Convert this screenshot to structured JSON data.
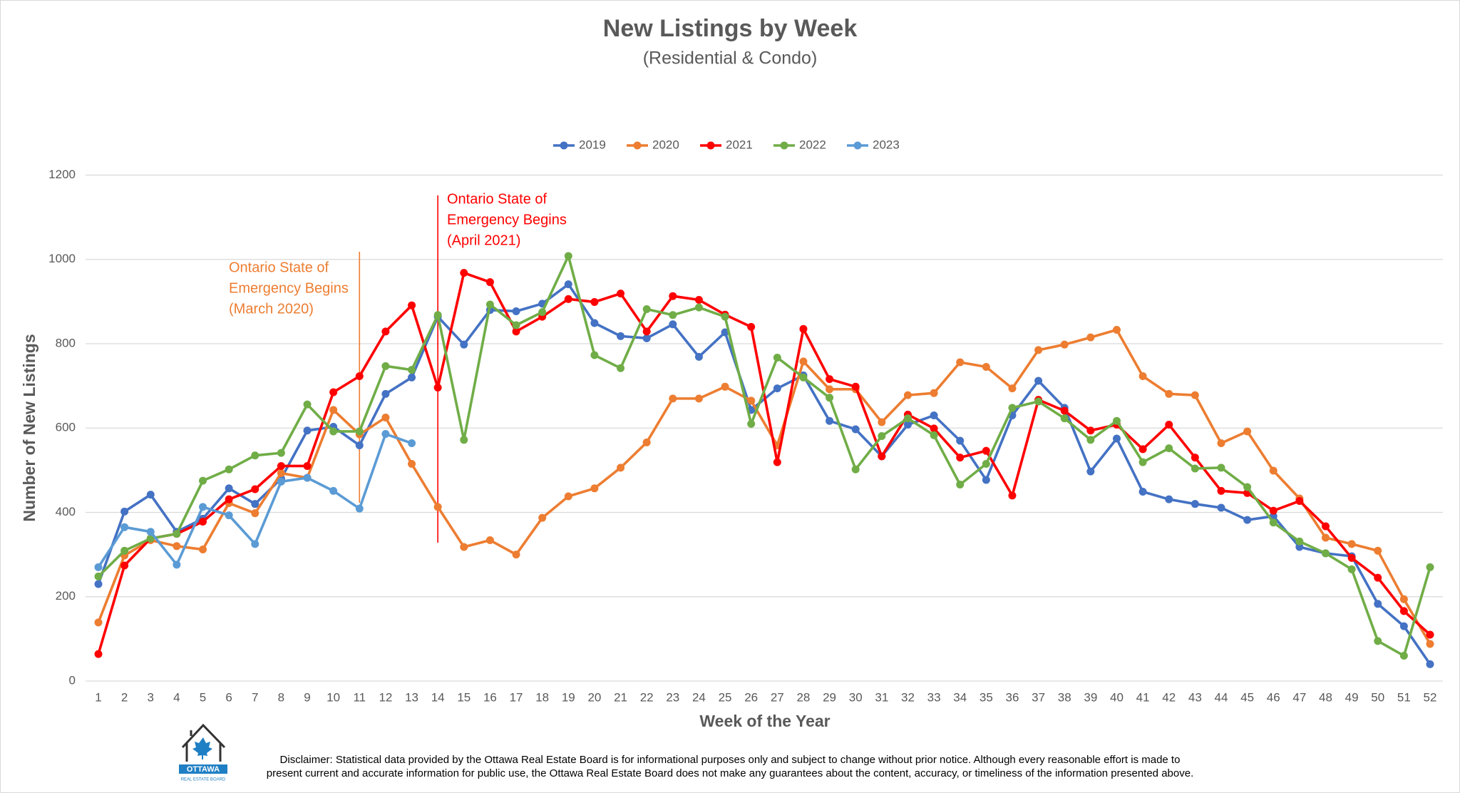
{
  "chart_data": {
    "type": "line",
    "title": "New Listings by Week",
    "subtitle": "(Residential & Condo)",
    "x_label": "Week of the Year",
    "y_label": "Number of New Listings",
    "categories": [
      "1",
      "2",
      "3",
      "4",
      "5",
      "6",
      "7",
      "8",
      "9",
      "10",
      "11",
      "12",
      "13",
      "14",
      "15",
      "16",
      "17",
      "18",
      "19",
      "20",
      "21",
      "22",
      "23",
      "24",
      "25",
      "26",
      "27",
      "28",
      "29",
      "30",
      "31",
      "32",
      "33",
      "34",
      "35",
      "36",
      "37",
      "38",
      "39",
      "40",
      "41",
      "42",
      "43",
      "44",
      "45",
      "46",
      "47",
      "48",
      "49",
      "50",
      "51",
      "52"
    ],
    "ylim": [
      0,
      1200
    ],
    "yticks": [
      0,
      200,
      400,
      600,
      800,
      1000,
      1200
    ],
    "grid": true,
    "legend": "top",
    "series": [
      {
        "name": "2019",
        "color": "#4472c4",
        "values": [
          230,
          402,
          442,
          354,
          385,
          457,
          420,
          480,
          594,
          603,
          559,
          681,
          720,
          864,
          798,
          880,
          877,
          895,
          941,
          849,
          818,
          813,
          846,
          769,
          827,
          643,
          694,
          725,
          617,
          597,
          533,
          608,
          630,
          570,
          477,
          630,
          712,
          648,
          497,
          575,
          449,
          431,
          420,
          411,
          382,
          391,
          318,
          303,
          296,
          183,
          130,
          40
        ]
      },
      {
        "name": "2020",
        "color": "#ed7d31",
        "values": [
          139,
          298,
          334,
          320,
          312,
          422,
          398,
          493,
          482,
          643,
          585,
          625,
          515,
          413,
          318,
          334,
          300,
          387,
          438,
          457,
          506,
          566,
          670,
          670,
          698,
          665,
          559,
          758,
          692,
          692,
          614,
          678,
          683,
          756,
          745,
          694,
          785,
          798,
          815,
          833,
          723,
          681,
          678,
          564,
          592,
          499,
          433,
          340,
          325,
          309,
          194,
          88
        ]
      },
      {
        "name": "2021",
        "color": "#ff0000",
        "values": [
          64,
          274,
          338,
          349,
          378,
          431,
          455,
          510,
          510,
          685,
          723,
          829,
          891,
          696,
          968,
          946,
          829,
          864,
          906,
          899,
          919,
          829,
          913,
          904,
          869,
          840,
          519,
          835,
          716,
          698,
          533,
          632,
          599,
          530,
          546,
          440,
          667,
          641,
          594,
          608,
          550,
          608,
          530,
          451,
          446,
          404,
          427,
          367,
          292,
          245,
          166,
          110
        ]
      },
      {
        "name": "2022",
        "color": "#70ad47",
        "values": [
          248,
          309,
          338,
          349,
          475,
          502,
          535,
          541,
          656,
          592,
          592,
          747,
          738,
          868,
          572,
          893,
          844,
          875,
          1008,
          773,
          742,
          882,
          868,
          886,
          864,
          610,
          767,
          720,
          672,
          502,
          581,
          623,
          583,
          466,
          515,
          648,
          663,
          623,
          572,
          617,
          519,
          552,
          504,
          506,
          460,
          376,
          331,
          303,
          265,
          95,
          60,
          270
        ]
      },
      {
        "name": "2023",
        "color": "#5b9bd5",
        "values": [
          270,
          365,
          354,
          276,
          413,
          393,
          325,
          473,
          482,
          451,
          409,
          586,
          564,
          null,
          null,
          null,
          null,
          null,
          null,
          null,
          null,
          null,
          null,
          null,
          null,
          null,
          null,
          null,
          null,
          null,
          null,
          null,
          null,
          null,
          null,
          null,
          null,
          null,
          null,
          null,
          null,
          null,
          null,
          null,
          null,
          null,
          null,
          null,
          null,
          null,
          null,
          null
        ]
      }
    ],
    "annotations": [
      {
        "week": 11,
        "color": "#ed7d31",
        "lines": [
          "Ontario State of",
          "Emergency Begins",
          "(March 2020)"
        ]
      },
      {
        "week": 14,
        "color": "#ff0000",
        "lines": [
          "Ontario State of",
          "Emergency Begins",
          "(April 2021)"
        ]
      }
    ]
  },
  "footer": {
    "logo": {
      "name": "OTTAWA",
      "tagline": "REAL ESTATE BOARD"
    },
    "disclaimer": [
      "Disclaimer: Statistical data provided by the Ottawa Real Estate Board is for informational purposes only and subject to change without prior notice. Although every reasonable effort is made to",
      "present current and accurate information for public use, the Ottawa Real Estate Board does not make any guarantees about the content, accuracy, or timeliness of the information presented above."
    ]
  }
}
